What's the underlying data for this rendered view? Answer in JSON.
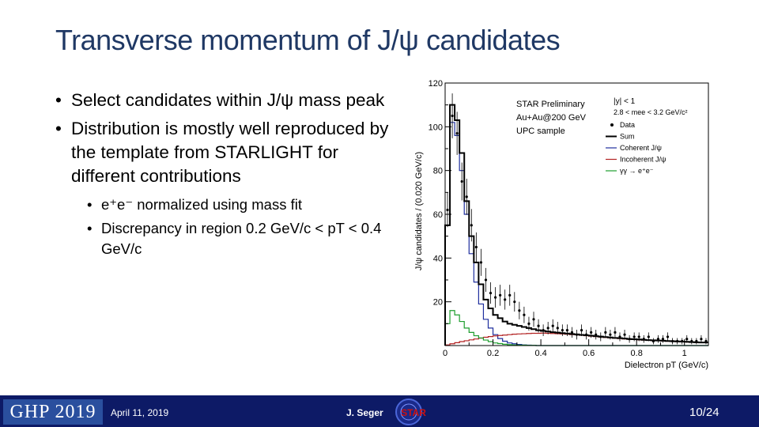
{
  "slide": {
    "title": "Transverse momentum of J/ψ candidates",
    "bullets": [
      "Select candidates within J/ψ mass peak",
      "Distribution is mostly well reproduced by the template from STARLIGHT for different contributions"
    ],
    "sub_bullets": [
      "e⁺e⁻ normalized using mass fit",
      "Discrepancy in region 0.2 GeV/c < pT < 0.4 GeV/c"
    ]
  },
  "footer": {
    "conference": "GHP 2019",
    "date": "April 11, 2019",
    "author": "J. Seger",
    "logo_text": "STAR",
    "page": "10/24",
    "bg_color": "#0d1a66"
  },
  "chart_data": {
    "type": "line",
    "ylabel": "J/ψ candidates / (0.020 GeV/c)",
    "xlabel": "Dielectron pT (GeV/c)",
    "xlim": [
      0,
      1.1
    ],
    "ylim": [
      0,
      120
    ],
    "x_ticks": [
      "0",
      "0.2",
      "0.4",
      "0.6",
      "0.8",
      "1"
    ],
    "y_ticks": [
      "20",
      "40",
      "60",
      "80",
      "100",
      "120"
    ],
    "legend_position": "top-right",
    "annotations": [
      "STAR Preliminary",
      "Au+Au@200 GeV",
      "UPC sample"
    ],
    "cuts": [
      "|y| < 1",
      "2.8 < mee < 3.2 GeV/c²"
    ],
    "bin_centers": [
      0.01,
      0.03,
      0.05,
      0.07,
      0.09,
      0.11,
      0.13,
      0.15,
      0.17,
      0.19,
      0.21,
      0.23,
      0.25,
      0.27,
      0.29,
      0.31,
      0.33,
      0.35,
      0.37,
      0.39,
      0.41,
      0.43,
      0.45,
      0.47,
      0.49,
      0.51,
      0.53,
      0.55,
      0.57,
      0.59,
      0.61,
      0.63,
      0.65,
      0.67,
      0.69,
      0.71,
      0.73,
      0.75,
      0.77,
      0.79,
      0.81,
      0.83,
      0.85,
      0.87,
      0.89,
      0.91,
      0.93,
      0.95,
      0.97,
      0.99,
      1.01,
      1.03,
      1.05,
      1.07,
      1.09
    ],
    "series": [
      {
        "name": "Data",
        "color": "#000000",
        "values": [
          62,
          105,
          97,
          75,
          68,
          55,
          45,
          38,
          30,
          24,
          22,
          23,
          21,
          23,
          20,
          16,
          14,
          10,
          12,
          9,
          7,
          8,
          9,
          8,
          7,
          7,
          6,
          5,
          7,
          5,
          6,
          5,
          4,
          6,
          5,
          6,
          4,
          5,
          3,
          4,
          4,
          3,
          4,
          2,
          3,
          3,
          4,
          2,
          2,
          2,
          3,
          2,
          2,
          3,
          2
        ]
      },
      {
        "name": "Sum",
        "color": "#000000",
        "values": [
          55,
          110,
          103,
          88,
          66,
          50,
          38,
          28,
          21,
          17,
          14,
          12.5,
          11,
          10,
          9.5,
          9,
          8.5,
          8,
          7.5,
          7,
          6.7,
          6.4,
          6.1,
          5.9,
          5.7,
          5.5,
          5.3,
          5.1,
          4.9,
          4.7,
          4.5,
          4.3,
          4.1,
          3.9,
          3.7,
          3.5,
          3.4,
          3.2,
          3.0,
          2.9,
          2.8,
          2.6,
          2.5,
          2.4,
          2.3,
          2.2,
          2.1,
          2.0,
          1.9,
          1.8,
          1.7,
          1.6,
          1.5,
          1.4,
          1.4
        ]
      },
      {
        "name": "Coherent J/ψ",
        "color": "#1f2f9e",
        "values": [
          55,
          102,
          96,
          80,
          60,
          42,
          29,
          19,
          12,
          8,
          5,
          3.2,
          2,
          1.2,
          0.8,
          0.5,
          0.3,
          0.2,
          0.1,
          0,
          0,
          0,
          0,
          0,
          0,
          0,
          0,
          0,
          0,
          0,
          0,
          0,
          0,
          0,
          0,
          0,
          0,
          0,
          0,
          0,
          0,
          0,
          0,
          0,
          0,
          0,
          0,
          0,
          0,
          0,
          0,
          0,
          0,
          0,
          0
        ]
      },
      {
        "name": "Incoherent J/ψ",
        "color": "#b22222",
        "values": [
          0.3,
          0.8,
          1.3,
          1.8,
          2.2,
          2.6,
          3,
          3.4,
          3.8,
          4.1,
          4.4,
          4.6,
          4.8,
          5,
          5.2,
          5.3,
          5.4,
          5.5,
          5.6,
          5.6,
          5.7,
          5.6,
          5.5,
          5.4,
          5.3,
          5.2,
          5,
          4.9,
          4.7,
          4.5,
          4.3,
          4.1,
          3.9,
          3.7,
          3.5,
          3.4,
          3.2,
          3.0,
          2.9,
          2.8,
          2.6,
          2.5,
          2.4,
          2.3,
          2.2,
          2.1,
          2.0,
          1.9,
          1.8,
          1.7,
          1.6,
          1.5,
          1.4,
          1.4,
          1.3
        ]
      },
      {
        "name": "γγ → e⁺e⁻",
        "color": "#1e9e2e",
        "values": [
          10,
          16,
          14,
          11,
          8,
          6,
          4.5,
          3.5,
          2.5,
          1.8,
          1.2,
          0.9,
          0.6,
          0.4,
          0.3,
          0.2,
          0.2,
          0.1,
          0.1,
          0,
          0,
          0,
          0,
          0,
          0,
          0,
          0,
          0,
          0,
          0,
          0,
          0,
          0,
          0,
          0,
          0,
          0,
          0,
          0,
          0,
          0,
          0,
          0,
          0,
          0,
          0,
          0,
          0,
          0,
          0,
          0,
          0,
          0,
          0,
          0
        ]
      }
    ]
  }
}
